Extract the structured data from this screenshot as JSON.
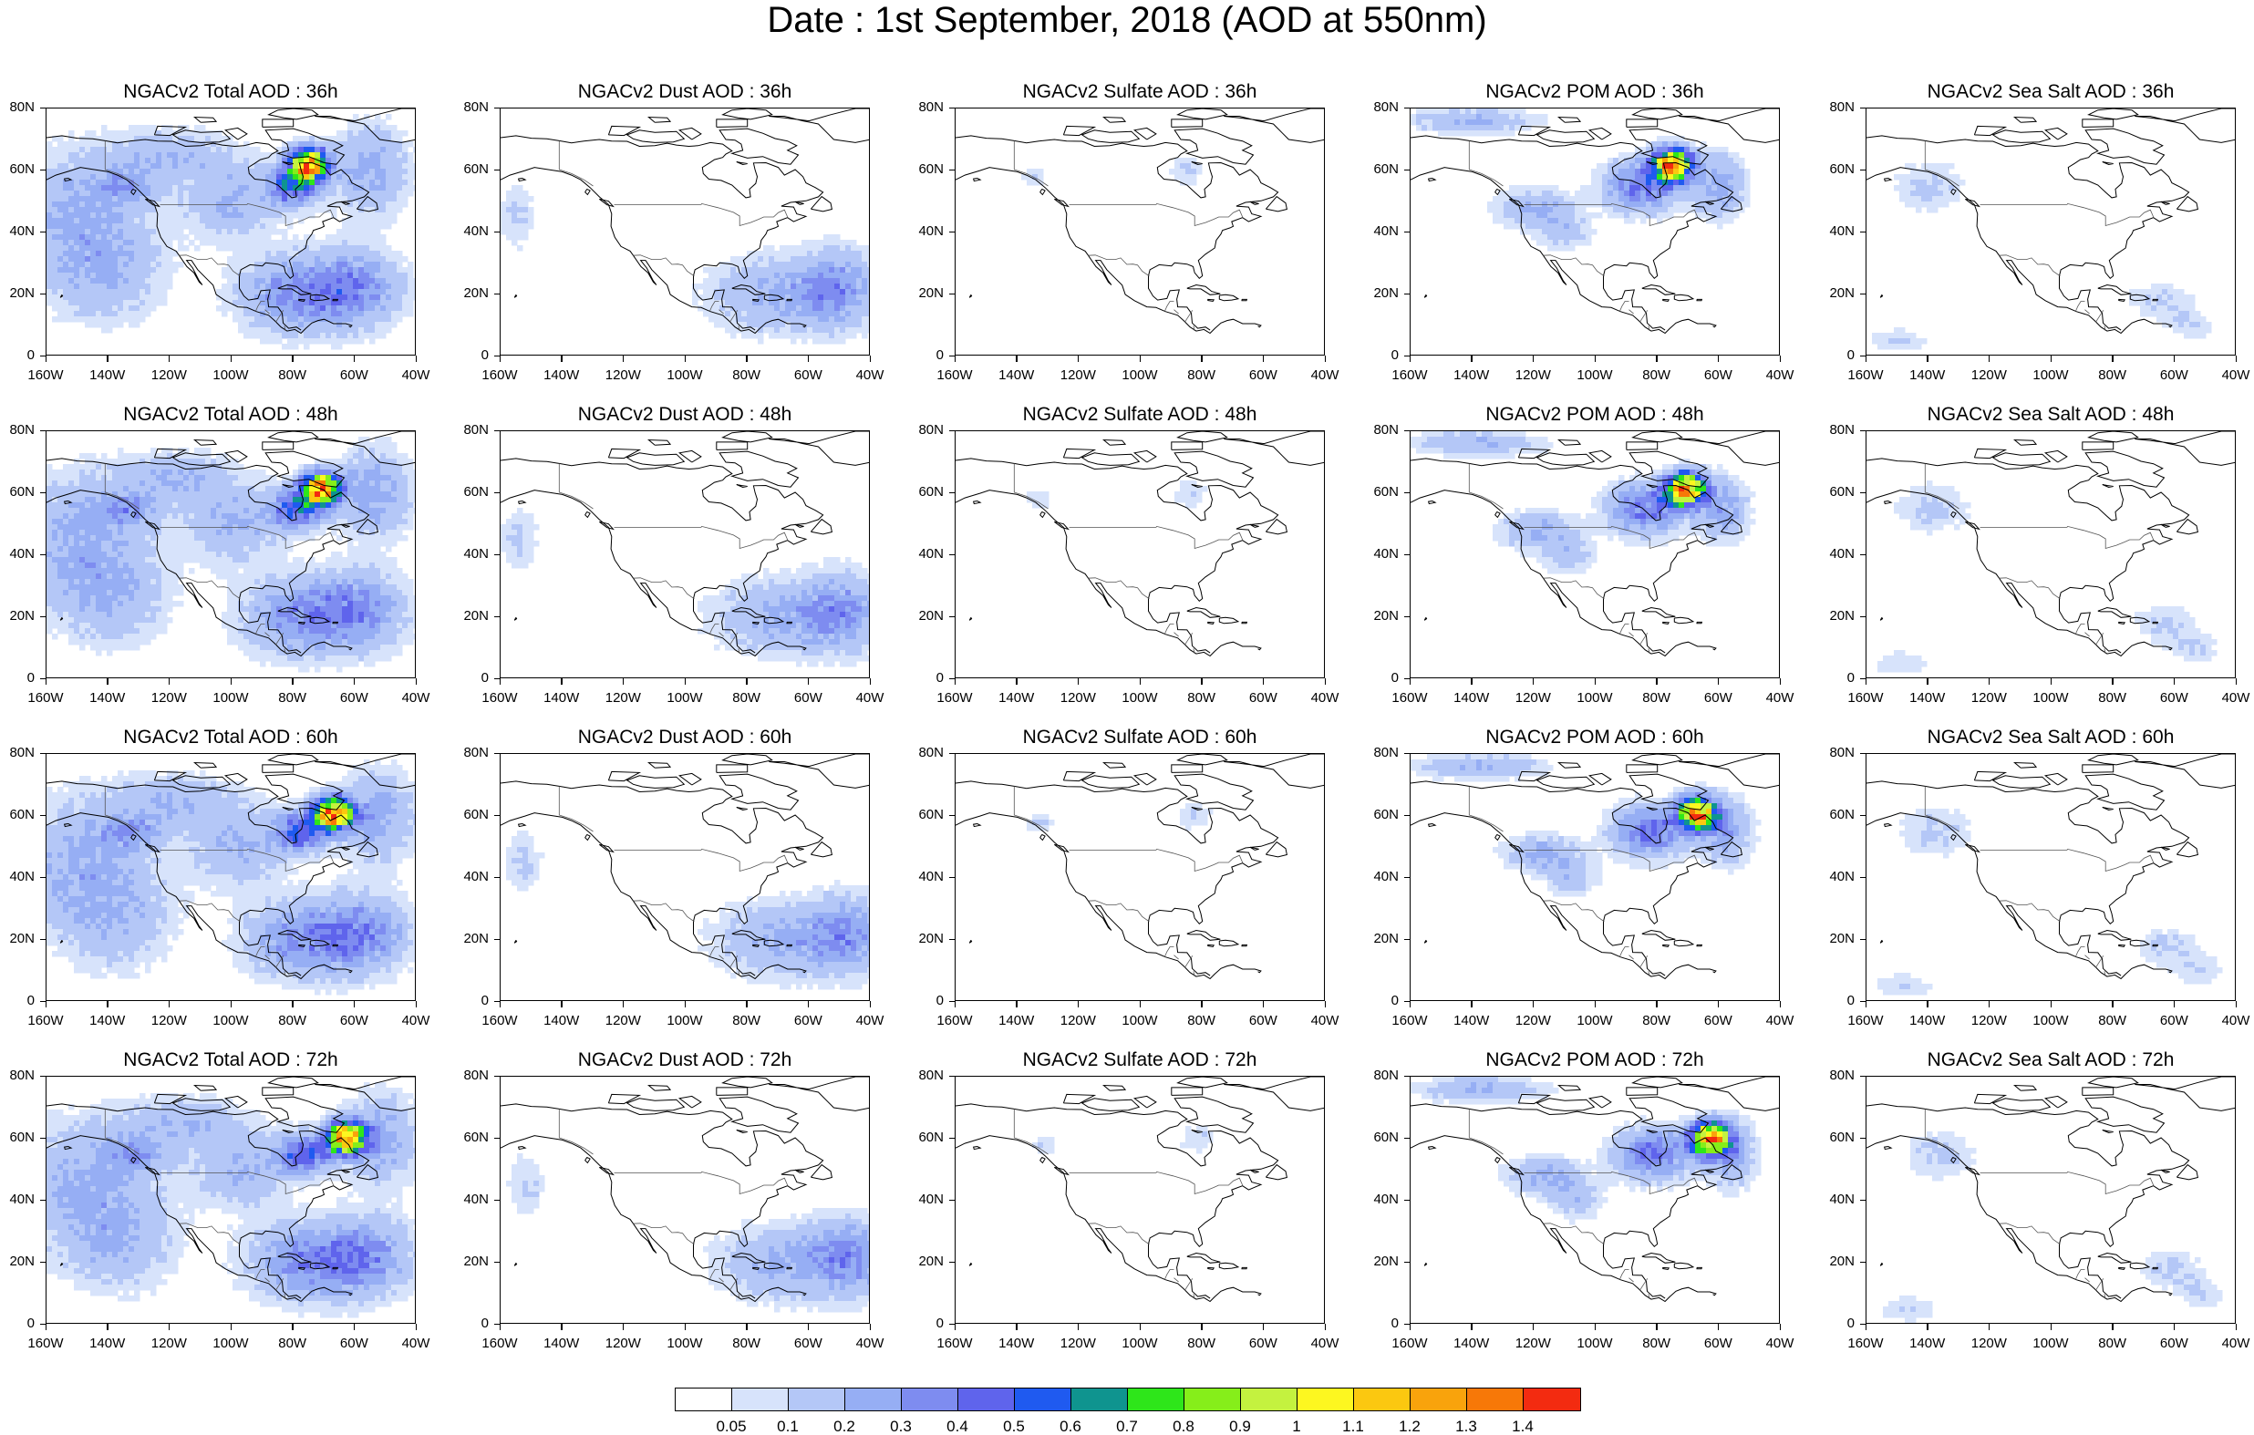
{
  "title": "Date : 1st September, 2018 (AOD at 550nm)",
  "panels": [
    [
      "NGACv2 Total AOD : 36h",
      "NGACv2 Dust AOD : 36h",
      "NGACv2 Sulfate AOD : 36h",
      "NGACv2 POM AOD : 36h",
      "NGACv2 Sea Salt AOD : 36h"
    ],
    [
      "NGACv2 Total AOD : 48h",
      "NGACv2 Dust AOD : 48h",
      "NGACv2 Sulfate AOD : 48h",
      "NGACv2 POM AOD : 48h",
      "NGACv2 Sea Salt AOD : 48h"
    ],
    [
      "NGACv2 Total AOD : 60h",
      "NGACv2 Dust AOD : 60h",
      "NGACv2 Sulfate AOD : 60h",
      "NGACv2 POM AOD : 60h",
      "NGACv2 Sea Salt AOD : 60h"
    ],
    [
      "NGACv2 Total AOD : 72h",
      "NGACv2 Dust AOD : 72h",
      "NGACv2 Sulfate AOD : 72h",
      "NGACv2 POM AOD : 72h",
      "NGACv2 Sea Salt  AOD : 72h"
    ]
  ],
  "axes": {
    "lon_labels": [
      "160W",
      "140W",
      "120W",
      "100W",
      "80W",
      "60W",
      "40W"
    ],
    "lat_labels": [
      "0",
      "20N",
      "40N",
      "60N",
      "80N"
    ],
    "lon_range": [
      -160,
      -40
    ],
    "lat_range": [
      0,
      80
    ]
  },
  "colorbar": {
    "labels": [
      "0.05",
      "0.1",
      "0.2",
      "0.3",
      "0.4",
      "0.5",
      "0.6",
      "0.7",
      "0.8",
      "0.9",
      "1",
      "1.1",
      "1.2",
      "1.3",
      "1.4"
    ],
    "colors": [
      "#ffffff",
      "#d7e3fb",
      "#b4c7f7",
      "#96aef4",
      "#7e8cf0",
      "#5f64ec",
      "#1f5af0",
      "#0f948f",
      "#2ee61a",
      "#86ee1a",
      "#c4f23f",
      "#fdf720",
      "#fbc810",
      "#f9a30c",
      "#f77808",
      "#f32b10"
    ]
  }
}
